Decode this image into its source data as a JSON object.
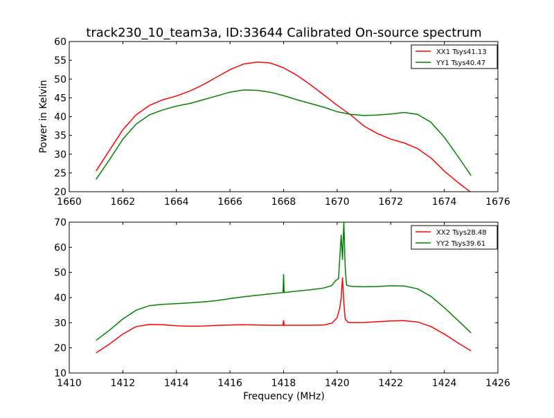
{
  "figure": {
    "title": "track230_10_team3a, ID:33644 Calibrated On-source spectrum",
    "xlabel": "Frequency (MHz)"
  },
  "chart_data": [
    {
      "type": "line",
      "title": "track230_10_team3a, ID:33644 Calibrated On-source spectrum",
      "xlabel": "",
      "ylabel": "Power in Kelvin",
      "xlim": [
        1660,
        1676
      ],
      "ylim": [
        20,
        60
      ],
      "xticks": [
        1660,
        1662,
        1664,
        1666,
        1668,
        1670,
        1672,
        1674,
        1676
      ],
      "yticks": [
        20,
        25,
        30,
        35,
        40,
        45,
        50,
        55,
        60
      ],
      "grid": false,
      "legend": "top-right",
      "series": [
        {
          "name": "XX1 Tsys41.13",
          "color": "#ff0000",
          "x": [
            1661.0,
            1661.5,
            1662.0,
            1662.5,
            1663.0,
            1663.5,
            1664.0,
            1664.5,
            1665.0,
            1665.5,
            1666.0,
            1666.5,
            1667.0,
            1667.5,
            1668.0,
            1668.5,
            1669.0,
            1669.5,
            1670.0,
            1670.5,
            1671.0,
            1671.5,
            1672.0,
            1672.5,
            1673.0,
            1673.5,
            1674.0,
            1674.5,
            1675.0
          ],
          "y": [
            25.5,
            31.0,
            36.5,
            40.5,
            43.0,
            44.5,
            45.5,
            46.8,
            48.5,
            50.5,
            52.5,
            54.0,
            54.5,
            54.3,
            53.0,
            51.0,
            48.5,
            45.8,
            43.0,
            40.5,
            37.5,
            35.5,
            34.0,
            33.0,
            31.5,
            29.0,
            25.5,
            22.5,
            19.8
          ]
        },
        {
          "name": "YY1 Tsys40.47",
          "color": "#008000",
          "x": [
            1661.0,
            1661.5,
            1662.0,
            1662.5,
            1663.0,
            1663.5,
            1664.0,
            1664.5,
            1665.0,
            1665.5,
            1666.0,
            1666.5,
            1667.0,
            1667.5,
            1668.0,
            1668.5,
            1669.0,
            1669.5,
            1670.0,
            1670.5,
            1671.0,
            1671.5,
            1672.0,
            1672.5,
            1673.0,
            1673.5,
            1674.0,
            1674.5,
            1675.0
          ],
          "y": [
            23.3,
            28.5,
            34.0,
            38.0,
            40.5,
            41.8,
            42.8,
            43.5,
            44.5,
            45.5,
            46.5,
            47.1,
            47.0,
            46.5,
            45.6,
            44.5,
            43.5,
            42.5,
            41.3,
            40.6,
            40.3,
            40.4,
            40.7,
            41.1,
            40.6,
            38.5,
            34.5,
            29.5,
            24.3
          ]
        }
      ]
    },
    {
      "type": "line",
      "title": "",
      "xlabel": "Frequency (MHz)",
      "ylabel": "",
      "xlim": [
        1410,
        1426
      ],
      "ylim": [
        10,
        70
      ],
      "xticks": [
        1410,
        1412,
        1414,
        1416,
        1418,
        1420,
        1422,
        1424,
        1426
      ],
      "yticks": [
        10,
        20,
        30,
        40,
        50,
        60,
        70
      ],
      "grid": false,
      "legend": "top-right",
      "series": [
        {
          "name": "XX2 Tsys28.48",
          "color": "#ff0000",
          "x": [
            1411.0,
            1411.5,
            1412.0,
            1412.5,
            1413.0,
            1413.5,
            1414.0,
            1414.5,
            1415.0,
            1415.5,
            1416.0,
            1416.5,
            1417.0,
            1417.5,
            1417.98,
            1418.0,
            1418.02,
            1418.5,
            1419.0,
            1419.5,
            1419.8,
            1420.0,
            1420.1,
            1420.15,
            1420.2,
            1420.25,
            1420.3,
            1420.4,
            1420.6,
            1421.0,
            1421.5,
            1422.0,
            1422.5,
            1423.0,
            1423.5,
            1424.0,
            1424.5,
            1425.0
          ],
          "y": [
            18.0,
            21.5,
            25.5,
            28.5,
            29.3,
            29.2,
            28.8,
            28.6,
            28.7,
            28.9,
            29.1,
            29.2,
            29.1,
            29.0,
            29.0,
            31.0,
            29.0,
            29.0,
            29.0,
            29.1,
            29.8,
            32.0,
            36.0,
            40.0,
            48.0,
            38.0,
            31.5,
            30.2,
            30.0,
            30.1,
            30.4,
            30.7,
            30.8,
            30.3,
            28.5,
            25.5,
            22.0,
            18.8
          ]
        },
        {
          "name": "YY2 Tsys39.61",
          "color": "#008000",
          "x": [
            1411.0,
            1411.5,
            1412.0,
            1412.5,
            1413.0,
            1413.5,
            1414.0,
            1414.5,
            1415.0,
            1415.5,
            1416.0,
            1416.5,
            1417.0,
            1417.5,
            1417.98,
            1418.0,
            1418.02,
            1418.5,
            1419.0,
            1419.5,
            1419.8,
            1419.95,
            1420.05,
            1420.15,
            1420.2,
            1420.25,
            1420.3,
            1420.35,
            1420.45,
            1420.6,
            1421.0,
            1421.5,
            1422.0,
            1422.5,
            1423.0,
            1423.5,
            1424.0,
            1424.5,
            1425.0
          ],
          "y": [
            23.0,
            27.0,
            31.5,
            35.0,
            36.8,
            37.3,
            37.6,
            37.9,
            38.3,
            38.8,
            39.6,
            40.3,
            40.9,
            41.5,
            42.0,
            49.3,
            42.0,
            42.6,
            43.1,
            43.8,
            44.8,
            46.8,
            47.5,
            65.0,
            55.0,
            70.0,
            52.0,
            45.0,
            44.6,
            44.4,
            44.3,
            44.4,
            44.7,
            44.6,
            43.5,
            40.5,
            36.0,
            31.0,
            26.0
          ]
        }
      ]
    }
  ]
}
